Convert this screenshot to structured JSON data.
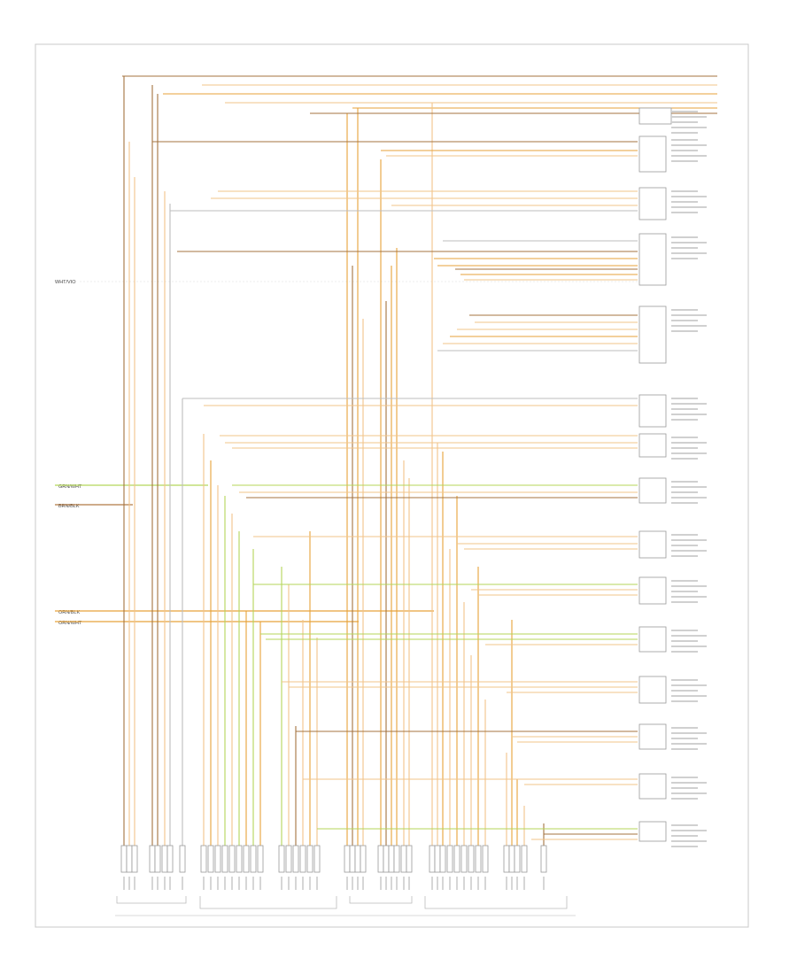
{
  "diagram": {
    "left_refs": {
      "main": "WHT/VIO",
      "brn": "BRN/BLK",
      "grn": "GRN/WHT",
      "org1": "ORN/BLK",
      "org2": "ORN/WHT"
    },
    "footer": {
      "corner": "",
      "connector_label": ""
    }
  }
}
